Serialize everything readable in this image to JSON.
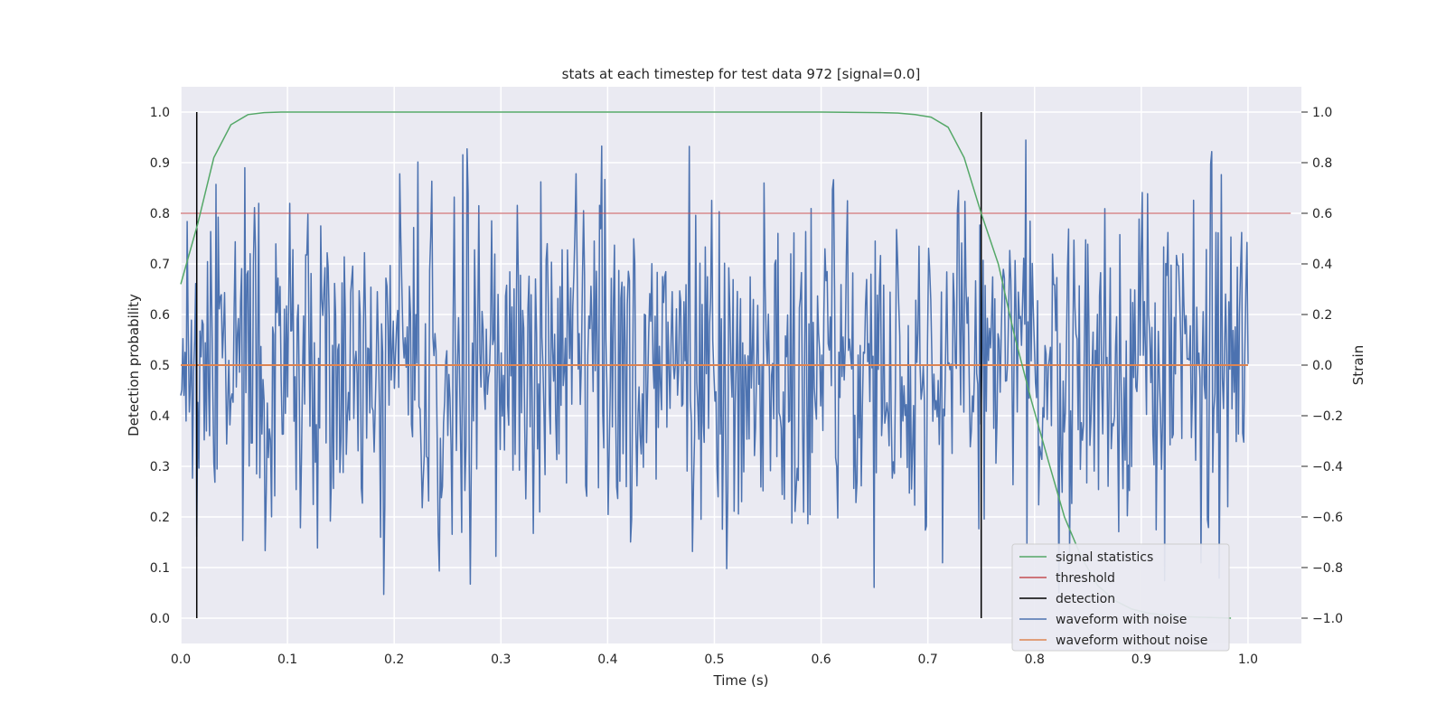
{
  "chart_data": {
    "type": "line",
    "title": "stats at each timestep for test data 972 [signal=0.0]",
    "xlabel": "Time (s)",
    "ylabel": "Detection probability",
    "ylabel_right": "Strain",
    "xlim": [
      0.0,
      1.05
    ],
    "ylim": [
      -0.05,
      1.05
    ],
    "ylim_right": [
      -1.1,
      1.1
    ],
    "grid": true,
    "legend_position": "lower right",
    "x_ticks": [
      "0.0",
      "0.1",
      "0.2",
      "0.3",
      "0.4",
      "0.5",
      "0.6",
      "0.7",
      "0.8",
      "0.9",
      "1.0"
    ],
    "y_ticks": [
      "0.0",
      "0.1",
      "0.2",
      "0.3",
      "0.4",
      "0.5",
      "0.6",
      "0.7",
      "0.8",
      "0.9",
      "1.0"
    ],
    "y_ticks_right": [
      "−1.0",
      "−0.8",
      "−0.6",
      "−0.4",
      "−0.2",
      "0.0",
      "0.2",
      "0.4",
      "0.6",
      "0.8",
      "1.0"
    ],
    "series": [
      {
        "name": "signal statistics",
        "color": "#55a868",
        "axis": "left",
        "x": [
          0.0,
          0.016,
          0.031,
          0.047,
          0.063,
          0.078,
          0.094,
          0.2,
          0.4,
          0.6,
          0.656,
          0.672,
          0.688,
          0.703,
          0.719,
          0.734,
          0.75,
          0.766,
          0.781,
          0.797,
          0.813,
          0.828,
          0.844,
          0.859,
          0.875,
          0.891,
          0.906,
          0.922,
          0.938,
          0.953,
          0.969,
          0.984
        ],
        "y": [
          0.66,
          0.78,
          0.91,
          0.975,
          0.995,
          0.999,
          1.0,
          1.0,
          1.0,
          1.0,
          0.999,
          0.998,
          0.995,
          0.99,
          0.97,
          0.91,
          0.8,
          0.7,
          0.56,
          0.43,
          0.31,
          0.2,
          0.12,
          0.065,
          0.035,
          0.018,
          0.01,
          0.006,
          0.003,
          0.002,
          0.001,
          0.0
        ]
      },
      {
        "name": "threshold",
        "color": "#c44e52",
        "axis": "left",
        "x": [
          0.0,
          1.04
        ],
        "y": [
          0.8,
          0.8
        ]
      },
      {
        "name": "detection",
        "color": "#000000",
        "axis": "left",
        "segments": [
          {
            "x": [
              0.015,
              0.015
            ],
            "y": [
              0.0,
              1.0
            ]
          },
          {
            "x": [
              0.75,
              0.75
            ],
            "y": [
              0.0,
              1.0
            ]
          }
        ]
      },
      {
        "name": "waveform with noise",
        "color": "#4c72b0",
        "axis": "right",
        "x_range": [
          0.0,
          1.0
        ],
        "n_points": 1000,
        "y_approx_std": 0.33,
        "y_range": [
          -1.0,
          1.0
        ],
        "note_values": "noisy strain, approximately normal around 0.0"
      },
      {
        "name": "waveform without noise",
        "color": "#dd8452",
        "axis": "right",
        "x": [
          0.0,
          1.0
        ],
        "y": [
          0.0,
          0.0
        ]
      }
    ]
  }
}
